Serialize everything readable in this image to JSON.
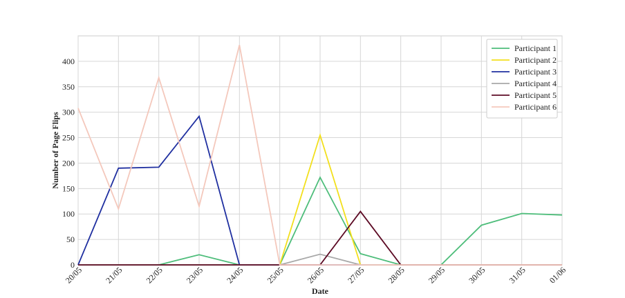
{
  "chart_data": {
    "type": "line",
    "x_label": "Date",
    "y_label": "Number of Page Flips",
    "categories": [
      "20/05",
      "21/05",
      "22/05",
      "23/05",
      "24/05",
      "25/05",
      "26/05",
      "27/05",
      "28/05",
      "29/05",
      "30/05",
      "31/05",
      "01/06"
    ],
    "series": [
      {
        "name": "Participant 1",
        "color": "#4dbd7a",
        "values": [
          0,
          0,
          0,
          20,
          0,
          0,
          172,
          22,
          0,
          0,
          78,
          101,
          98
        ]
      },
      {
        "name": "Participant 2",
        "color": "#f2df1c",
        "values": [
          0,
          0,
          0,
          0,
          0,
          0,
          255,
          0,
          0,
          0,
          0,
          0,
          0
        ]
      },
      {
        "name": "Participant 3",
        "color": "#1f2fa0",
        "values": [
          0,
          190,
          192,
          292,
          0,
          0,
          0,
          0,
          0,
          0,
          0,
          0,
          0
        ]
      },
      {
        "name": "Participant 4",
        "color": "#a8a8a8",
        "values": [
          0,
          0,
          0,
          0,
          0,
          0,
          21,
          0,
          0,
          0,
          0,
          0,
          0
        ]
      },
      {
        "name": "Participant 5",
        "color": "#5c0a24",
        "values": [
          0,
          0,
          0,
          0,
          0,
          0,
          0,
          105,
          0,
          0,
          0,
          0,
          0
        ]
      },
      {
        "name": "Participant 6",
        "color": "#f4c8bc",
        "values": [
          308,
          110,
          368,
          115,
          432,
          0,
          0,
          0,
          0,
          0,
          0,
          0,
          0
        ]
      }
    ],
    "ylim": [
      0,
      450
    ],
    "yticks": [
      0,
      50,
      100,
      150,
      200,
      250,
      300,
      350,
      400
    ],
    "grid": true,
    "legend": "upper right"
  }
}
